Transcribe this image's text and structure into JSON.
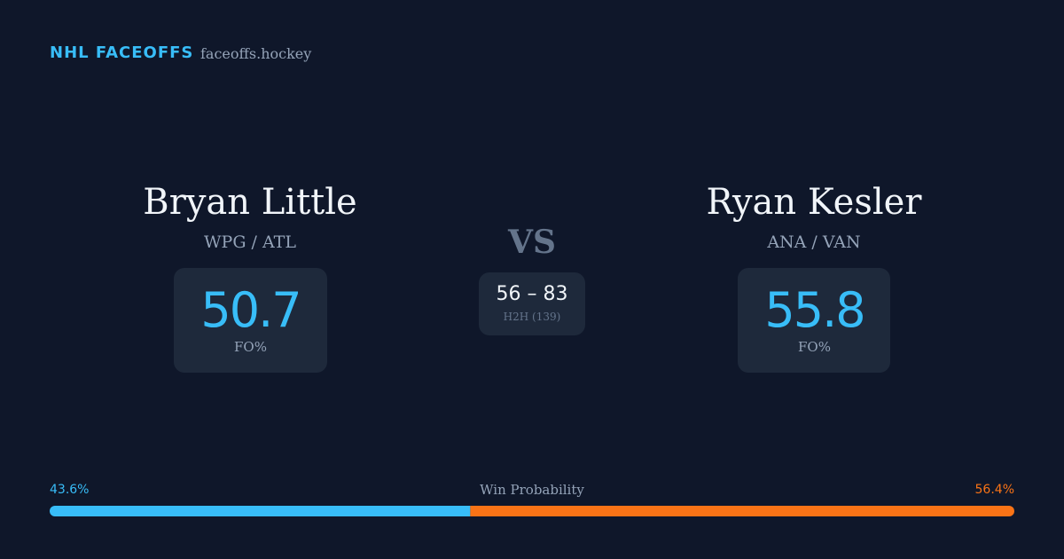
{
  "header": {
    "brand": "NHL FACEOFFS",
    "site": "faceoffs.hockey"
  },
  "players": [
    {
      "name": "Bryan Little",
      "teams": "WPG / ATL",
      "fo_pct": 50.7,
      "fo_label": "FO%"
    },
    {
      "name": "Ryan Kesler",
      "teams": "ANA / VAN",
      "fo_pct": 55.8,
      "fo_label": "FO%"
    }
  ],
  "vs": "VS",
  "h2h": {
    "score": "56 – 83",
    "label": "H2H (139)"
  },
  "win_probability": {
    "title": "Win Probability",
    "left": {
      "value": 43.6,
      "label": "43.6%"
    },
    "right": {
      "value": 56.4,
      "label": "56.4%"
    }
  }
}
